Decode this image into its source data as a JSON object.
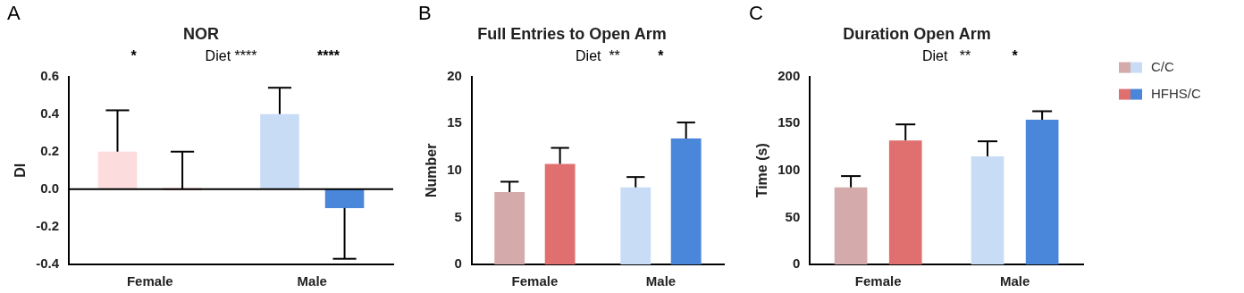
{
  "chart_data": [
    {
      "type": "bar",
      "title": "NOR",
      "ylabel": "DI",
      "categories": [
        "Female",
        "Male"
      ],
      "series": [
        {
          "colors": [
            "#fcdcdc",
            "#c8dcf5"
          ],
          "values": [
            0.2,
            0.4
          ],
          "errors": [
            [
              0.2,
              0.42
            ],
            [
              0.4,
              0.54
            ]
          ]
        },
        {
          "colors": [
            "#e88080",
            "#4a86d9"
          ],
          "values": [
            0,
            -0.1
          ],
          "errors": [
            [
              0,
              0.2
            ],
            [
              -0.37,
              -0.1
            ]
          ]
        }
      ],
      "ylim": [
        -0.4,
        0.6
      ],
      "yticks": [
        -0.4,
        -0.2,
        {
          "value": 0,
          "label": "0.0"
        },
        0.2,
        0.4,
        0.6
      ],
      "grid": false,
      "legend": false,
      "ref_lines": [
        {
          "axis": "y",
          "value": 0,
          "color": "#000000"
        }
      ],
      "annotations": [
        "A",
        "Diet ****",
        "*",
        "****"
      ]
    },
    {
      "type": "bar",
      "title": "Full Entries to Open Arm",
      "ylabel": "Number",
      "categories": [
        "Female",
        "Male"
      ],
      "series": [
        {
          "colors": [
            "#d4aaaa",
            "#c8dcf5"
          ],
          "values": [
            7.7,
            8.2
          ],
          "errors": [
            [
              7.7,
              8.8
            ],
            [
              8.2,
              9.3
            ]
          ]
        },
        {
          "colors": [
            "#e07070",
            "#4a86d9"
          ],
          "values": [
            10.7,
            13.4
          ],
          "errors": [
            [
              10.7,
              12.4
            ],
            [
              13.4,
              15.1
            ]
          ]
        }
      ],
      "ylim": [
        0,
        20
      ],
      "yticks": [
        0,
        5,
        10,
        15,
        20
      ],
      "grid": false,
      "legend": false,
      "annotations": [
        "B",
        "Diet  **",
        "*"
      ]
    },
    {
      "type": "bar",
      "title": "Duration Open Arm",
      "ylabel": "Time (s)",
      "categories": [
        "Female",
        "Male"
      ],
      "series": [
        {
          "name": "C/C",
          "colors": [
            "#d4aaaa",
            "#c8dcf5"
          ],
          "values": [
            82,
            115
          ],
          "errors": [
            [
              82,
              94
            ],
            [
              115,
              131
            ]
          ]
        },
        {
          "name": "HFHS/C",
          "colors": [
            "#e07070",
            "#4a86d9"
          ],
          "values": [
            132,
            154
          ],
          "errors": [
            [
              132,
              149
            ],
            [
              154,
              163
            ]
          ]
        }
      ],
      "ylim": [
        0,
        200
      ],
      "yticks": [
        0,
        50,
        100,
        150,
        200
      ],
      "grid": false,
      "legend": "right",
      "annotations": [
        "C",
        "Diet   **",
        "*"
      ]
    }
  ]
}
